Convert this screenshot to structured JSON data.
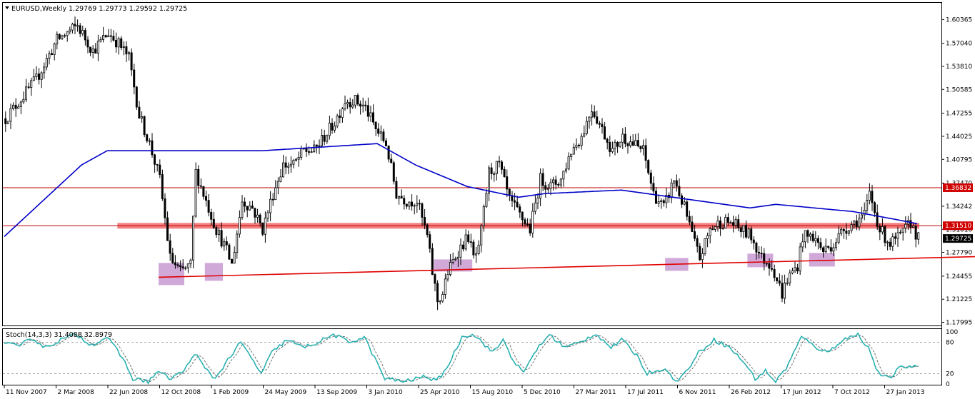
{
  "chart_data": {
    "type": "candlestick",
    "header": {
      "symbol": "EURUSD,Weekly",
      "ohlc": "1.29769 1.29773 1.29592 1.29725"
    },
    "price_axis": {
      "range": [
        1.1795,
        1.618
      ],
      "ticks": [
        "1.60365",
        "1.57040",
        "1.53810",
        "1.50585",
        "1.47255",
        "1.44025",
        "1.40795",
        "1.37470",
        "1.34242",
        "1.31010",
        "1.27790",
        "1.24455",
        "1.21225",
        "1.17995"
      ]
    },
    "time_axis": {
      "labels": [
        "11 Nov 2007",
        "2 Mar 2008",
        "22 Jun 2008",
        "12 Oct 2008",
        "1 Feb 2009",
        "24 May 2009",
        "13 Sep 2009",
        "3 Jan 2010",
        "25 Apr 2010",
        "15 Aug 2010",
        "5 Dec 2010",
        "27 Mar 2011",
        "17 Jul 2011",
        "6 Nov 2011",
        "26 Feb 2012",
        "17 Jun 2012",
        "7 Oct 2012",
        "27 Jan 2013"
      ]
    },
    "anchors": [
      [
        0,
        1.465
      ],
      [
        12,
        1.52
      ],
      [
        20,
        1.575
      ],
      [
        28,
        1.595
      ],
      [
        34,
        1.56
      ],
      [
        40,
        1.585
      ],
      [
        44,
        1.57
      ],
      [
        48,
        1.55
      ],
      [
        52,
        1.47
      ],
      [
        56,
        1.43
      ],
      [
        60,
        1.38
      ],
      [
        64,
        1.27
      ],
      [
        68,
        1.25
      ],
      [
        72,
        1.26
      ],
      [
        74,
        1.39
      ],
      [
        78,
        1.35
      ],
      [
        82,
        1.31
      ],
      [
        86,
        1.28
      ],
      [
        88,
        1.26
      ],
      [
        92,
        1.35
      ],
      [
        96,
        1.34
      ],
      [
        100,
        1.31
      ],
      [
        104,
        1.36
      ],
      [
        108,
        1.4
      ],
      [
        112,
        1.4
      ],
      [
        116,
        1.42
      ],
      [
        120,
        1.42
      ],
      [
        124,
        1.44
      ],
      [
        128,
        1.46
      ],
      [
        132,
        1.49
      ],
      [
        136,
        1.49
      ],
      [
        140,
        1.48
      ],
      [
        144,
        1.45
      ],
      [
        148,
        1.43
      ],
      [
        152,
        1.36
      ],
      [
        156,
        1.35
      ],
      [
        160,
        1.35
      ],
      [
        164,
        1.3
      ],
      [
        166,
        1.25
      ],
      [
        168,
        1.21
      ],
      [
        170,
        1.22
      ],
      [
        172,
        1.25
      ],
      [
        176,
        1.28
      ],
      [
        180,
        1.3
      ],
      [
        182,
        1.27
      ],
      [
        184,
        1.28
      ],
      [
        188,
        1.39
      ],
      [
        192,
        1.4
      ],
      [
        196,
        1.35
      ],
      [
        200,
        1.33
      ],
      [
        204,
        1.31
      ],
      [
        208,
        1.38
      ],
      [
        212,
        1.37
      ],
      [
        216,
        1.38
      ],
      [
        220,
        1.42
      ],
      [
        224,
        1.44
      ],
      [
        228,
        1.48
      ],
      [
        232,
        1.45
      ],
      [
        236,
        1.42
      ],
      [
        240,
        1.44
      ],
      [
        244,
        1.43
      ],
      [
        248,
        1.42
      ],
      [
        252,
        1.36
      ],
      [
        256,
        1.34
      ],
      [
        260,
        1.38
      ],
      [
        264,
        1.34
      ],
      [
        268,
        1.29
      ],
      [
        270,
        1.27
      ],
      [
        274,
        1.31
      ],
      [
        278,
        1.32
      ],
      [
        282,
        1.32
      ],
      [
        286,
        1.31
      ],
      [
        290,
        1.3
      ],
      [
        294,
        1.27
      ],
      [
        298,
        1.26
      ],
      [
        300,
        1.24
      ],
      [
        302,
        1.22
      ],
      [
        304,
        1.24
      ],
      [
        308,
        1.26
      ],
      [
        310,
        1.3
      ],
      [
        314,
        1.3
      ],
      [
        318,
        1.28
      ],
      [
        322,
        1.29
      ],
      [
        326,
        1.31
      ],
      [
        330,
        1.32
      ],
      [
        334,
        1.33
      ],
      [
        336,
        1.36
      ],
      [
        340,
        1.31
      ],
      [
        344,
        1.29
      ],
      [
        348,
        1.3
      ],
      [
        352,
        1.32
      ],
      [
        355,
        1.2973
      ]
    ],
    "ma_anchors": [
      [
        0,
        1.3
      ],
      [
        30,
        1.4
      ],
      [
        40,
        1.42
      ],
      [
        60,
        1.42
      ],
      [
        100,
        1.42
      ],
      [
        145,
        1.43
      ],
      [
        160,
        1.4
      ],
      [
        180,
        1.37
      ],
      [
        200,
        1.355
      ],
      [
        210,
        1.36
      ],
      [
        240,
        1.365
      ],
      [
        270,
        1.35
      ],
      [
        290,
        1.34
      ],
      [
        300,
        1.345
      ],
      [
        330,
        1.335
      ],
      [
        345,
        1.325
      ],
      [
        355,
        1.318
      ]
    ],
    "levels": [
      {
        "price": 1.36832,
        "label": "1.36832",
        "color": "#c00000"
      },
      {
        "price": 1.3151,
        "label": "1.31510",
        "color": "#c00000"
      },
      {
        "price": 1.29725,
        "label": "1.29725",
        "color": "#000000"
      }
    ],
    "zone": {
      "low": 1.311,
      "high": 1.319,
      "color": "#f06a6a"
    },
    "trendline": {
      "start": [
        60,
        1.243
      ],
      "end": [
        390,
        1.273
      ],
      "color": "#e00000"
    },
    "highlight_boxes": [
      {
        "x0": 60,
        "x1": 70,
        "low": 1.232,
        "high": 1.263
      },
      {
        "x0": 78,
        "x1": 85,
        "low": 1.238,
        "high": 1.263
      },
      {
        "x0": 167,
        "x1": 182,
        "low": 1.251,
        "high": 1.268
      },
      {
        "x0": 257,
        "x1": 266,
        "low": 1.252,
        "high": 1.27
      },
      {
        "x0": 289,
        "x1": 299,
        "low": 1.257,
        "high": 1.276
      },
      {
        "x0": 313,
        "x1": 323,
        "low": 1.258,
        "high": 1.277
      }
    ],
    "stochastic": {
      "label": "Stoch(14,3,3) 31.4088 32.8979",
      "range": [
        0,
        100
      ],
      "ticks": [
        "100",
        "80",
        "20",
        "0"
      ],
      "levels": [
        80,
        20
      ],
      "anchors": [
        [
          0,
          80
        ],
        [
          6,
          70
        ],
        [
          10,
          90
        ],
        [
          16,
          70
        ],
        [
          22,
          85
        ],
        [
          28,
          95
        ],
        [
          34,
          75
        ],
        [
          40,
          90
        ],
        [
          46,
          50
        ],
        [
          50,
          10
        ],
        [
          56,
          5
        ],
        [
          60,
          25
        ],
        [
          64,
          10
        ],
        [
          70,
          25
        ],
        [
          74,
          60
        ],
        [
          78,
          30
        ],
        [
          82,
          10
        ],
        [
          86,
          40
        ],
        [
          92,
          80
        ],
        [
          96,
          50
        ],
        [
          100,
          20
        ],
        [
          104,
          60
        ],
        [
          110,
          85
        ],
        [
          116,
          70
        ],
        [
          122,
          80
        ],
        [
          128,
          95
        ],
        [
          134,
          80
        ],
        [
          140,
          90
        ],
        [
          144,
          50
        ],
        [
          148,
          10
        ],
        [
          156,
          5
        ],
        [
          164,
          15
        ],
        [
          168,
          5
        ],
        [
          172,
          30
        ],
        [
          178,
          90
        ],
        [
          182,
          97
        ],
        [
          186,
          80
        ],
        [
          190,
          60
        ],
        [
          194,
          85
        ],
        [
          198,
          45
        ],
        [
          202,
          20
        ],
        [
          206,
          60
        ],
        [
          212,
          95
        ],
        [
          218,
          70
        ],
        [
          224,
          80
        ],
        [
          230,
          97
        ],
        [
          236,
          70
        ],
        [
          240,
          85
        ],
        [
          246,
          55
        ],
        [
          250,
          20
        ],
        [
          256,
          30
        ],
        [
          262,
          5
        ],
        [
          266,
          30
        ],
        [
          270,
          60
        ],
        [
          276,
          85
        ],
        [
          282,
          70
        ],
        [
          288,
          40
        ],
        [
          292,
          10
        ],
        [
          296,
          25
        ],
        [
          300,
          5
        ],
        [
          304,
          30
        ],
        [
          310,
          90
        ],
        [
          316,
          70
        ],
        [
          320,
          60
        ],
        [
          326,
          85
        ],
        [
          332,
          95
        ],
        [
          336,
          70
        ],
        [
          340,
          20
        ],
        [
          344,
          10
        ],
        [
          348,
          30
        ],
        [
          352,
          35
        ],
        [
          355,
          31
        ]
      ]
    },
    "colors": {
      "up": "#000000",
      "down": "#000000",
      "ma": "#0000c8",
      "stoch_main": "#2ab0b0",
      "stoch_signal": "#606060",
      "box": "#b070c0",
      "tag_red": "#d00000",
      "tag_black": "#000000"
    }
  }
}
